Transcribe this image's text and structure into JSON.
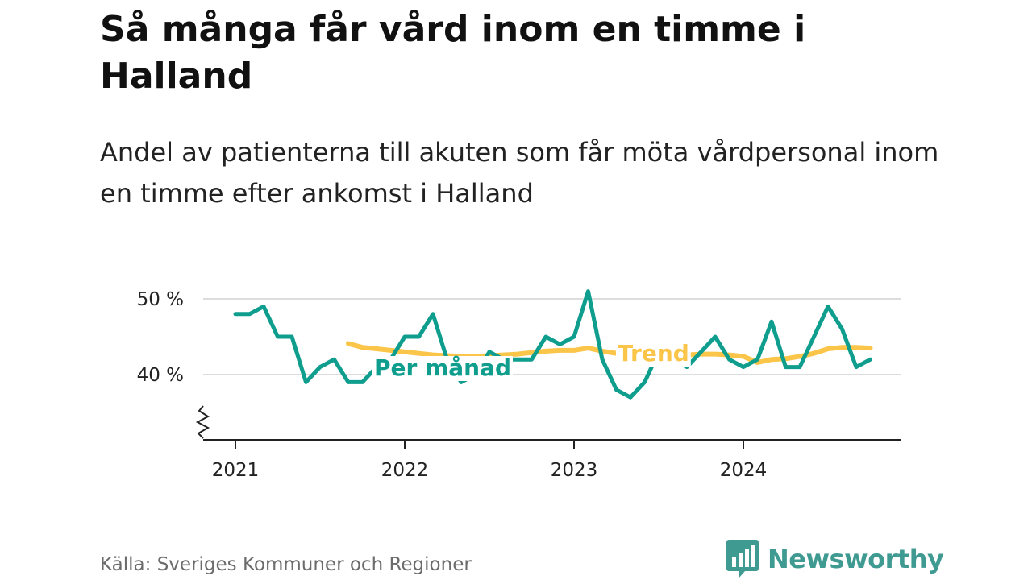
{
  "chart_data": {
    "type": "line",
    "title": "Så många får vård inom en timme i Halland",
    "subtitle": "Andel av patienterna till akuten som får möta vårdpersonal inom en timme efter ankomst i Halland",
    "ylim": [
      31,
      52
    ],
    "y_ticks": [
      {
        "value": 40,
        "label": "40 %"
      },
      {
        "value": 50,
        "label": "50 %"
      }
    ],
    "x_ticks": [
      {
        "value": 2021.0,
        "label": "2021"
      },
      {
        "value": 2022.0,
        "label": "2022"
      },
      {
        "value": 2023.0,
        "label": "2023"
      },
      {
        "value": 2024.0,
        "label": "2024"
      }
    ],
    "xlim": [
      2020.78,
      2025.0
    ],
    "grid": true,
    "axis_break": true,
    "series": [
      {
        "name": "Per månad",
        "color": "#0f9e8e",
        "x": [
          2021.0,
          2021.0833,
          2021.1667,
          2021.25,
          2021.3333,
          2021.4167,
          2021.5,
          2021.5833,
          2021.6667,
          2021.75,
          2021.8333,
          2021.9167,
          2022.0,
          2022.0833,
          2022.1667,
          2022.25,
          2022.3333,
          2022.4167,
          2022.5,
          2022.5833,
          2022.6667,
          2022.75,
          2022.8333,
          2022.9167,
          2023.0,
          2023.0833,
          2023.1667,
          2023.25,
          2023.3333,
          2023.4167,
          2023.5,
          2023.5833,
          2023.6667,
          2023.75,
          2023.8333,
          2023.9167,
          2024.0,
          2024.0833,
          2024.1667,
          2024.25,
          2024.3333,
          2024.4167,
          2024.5,
          2024.5833,
          2024.6667,
          2024.75
        ],
        "values": [
          48,
          48,
          49,
          45,
          45,
          39,
          41,
          42,
          39,
          39,
          41,
          42,
          45,
          45,
          48,
          42,
          39,
          40,
          43,
          42,
          42,
          42,
          45,
          44,
          45,
          51,
          42,
          38,
          37,
          39,
          43,
          42,
          41,
          43,
          45,
          42,
          41,
          42,
          47,
          41,
          41,
          45,
          49,
          46,
          41,
          42
        ]
      },
      {
        "name": "Trend",
        "color": "#fbc54a",
        "x": [
          2021.6667,
          2021.75,
          2021.8333,
          2021.9167,
          2022.0,
          2022.0833,
          2022.1667,
          2022.25,
          2022.3333,
          2022.4167,
          2022.5,
          2022.5833,
          2022.6667,
          2022.75,
          2022.8333,
          2022.9167,
          2023.0,
          2023.0833,
          2023.1667,
          2023.25,
          2023.3333,
          2023.4167,
          2023.5,
          2023.5833,
          2023.6667,
          2023.75,
          2023.8333,
          2023.9167,
          2024.0,
          2024.0833,
          2024.1667,
          2024.25,
          2024.3333,
          2024.4167,
          2024.5,
          2024.5833,
          2024.6667,
          2024.75
        ],
        "values": [
          44.1,
          43.6,
          43.4,
          43.2,
          43.0,
          42.8,
          42.6,
          42.5,
          42.4,
          42.4,
          42.5,
          42.6,
          42.7,
          42.9,
          43.1,
          43.2,
          43.2,
          43.5,
          43.1,
          42.8,
          42.6,
          42.5,
          42.4,
          42.5,
          42.6,
          42.7,
          42.7,
          42.6,
          42.4,
          41.6,
          42.0,
          42.1,
          42.4,
          42.8,
          43.4,
          43.6,
          43.6,
          43.5
        ]
      }
    ]
  },
  "footer": {
    "source": "Källa: Sveriges Kommuner och Regioner",
    "brand": "Newsworthy"
  },
  "colors": {
    "brand": "#3f9a92",
    "grid": "#dddddd",
    "axis": "#222222"
  }
}
